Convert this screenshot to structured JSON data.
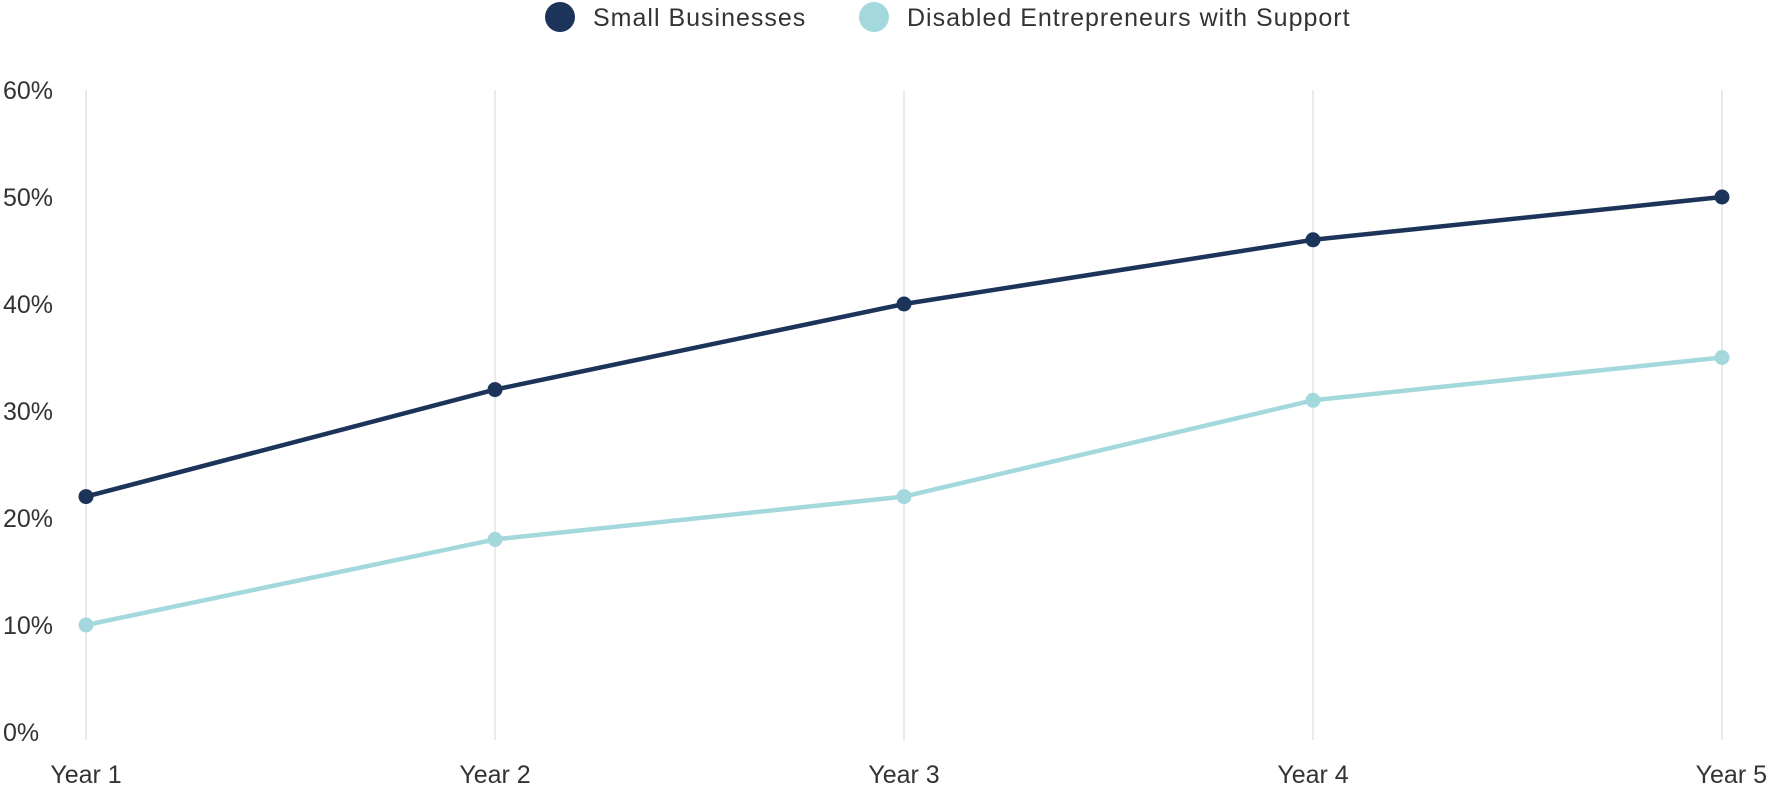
{
  "chart_data": {
    "type": "line",
    "categories": [
      "Year 1",
      "Year 2",
      "Year 3",
      "Year 4",
      "Year 5"
    ],
    "series": [
      {
        "name": "Small Businesses",
        "color": "#1c3459",
        "values": [
          22,
          32,
          40,
          46,
          50
        ]
      },
      {
        "name": "Disabled Entrepreneurs with Support",
        "color": "#a3d8dc",
        "values": [
          10,
          18,
          22,
          31,
          35
        ]
      }
    ],
    "ylim": [
      0,
      60
    ],
    "yticks": [
      0,
      10,
      20,
      30,
      40,
      50,
      60
    ],
    "ytick_labels": [
      "0%",
      "10%",
      "20%",
      "30%",
      "40%",
      "50%",
      "60%"
    ],
    "grid": {
      "vertical": true,
      "horizontal": false
    },
    "legend": {
      "placement": "top-center"
    }
  }
}
